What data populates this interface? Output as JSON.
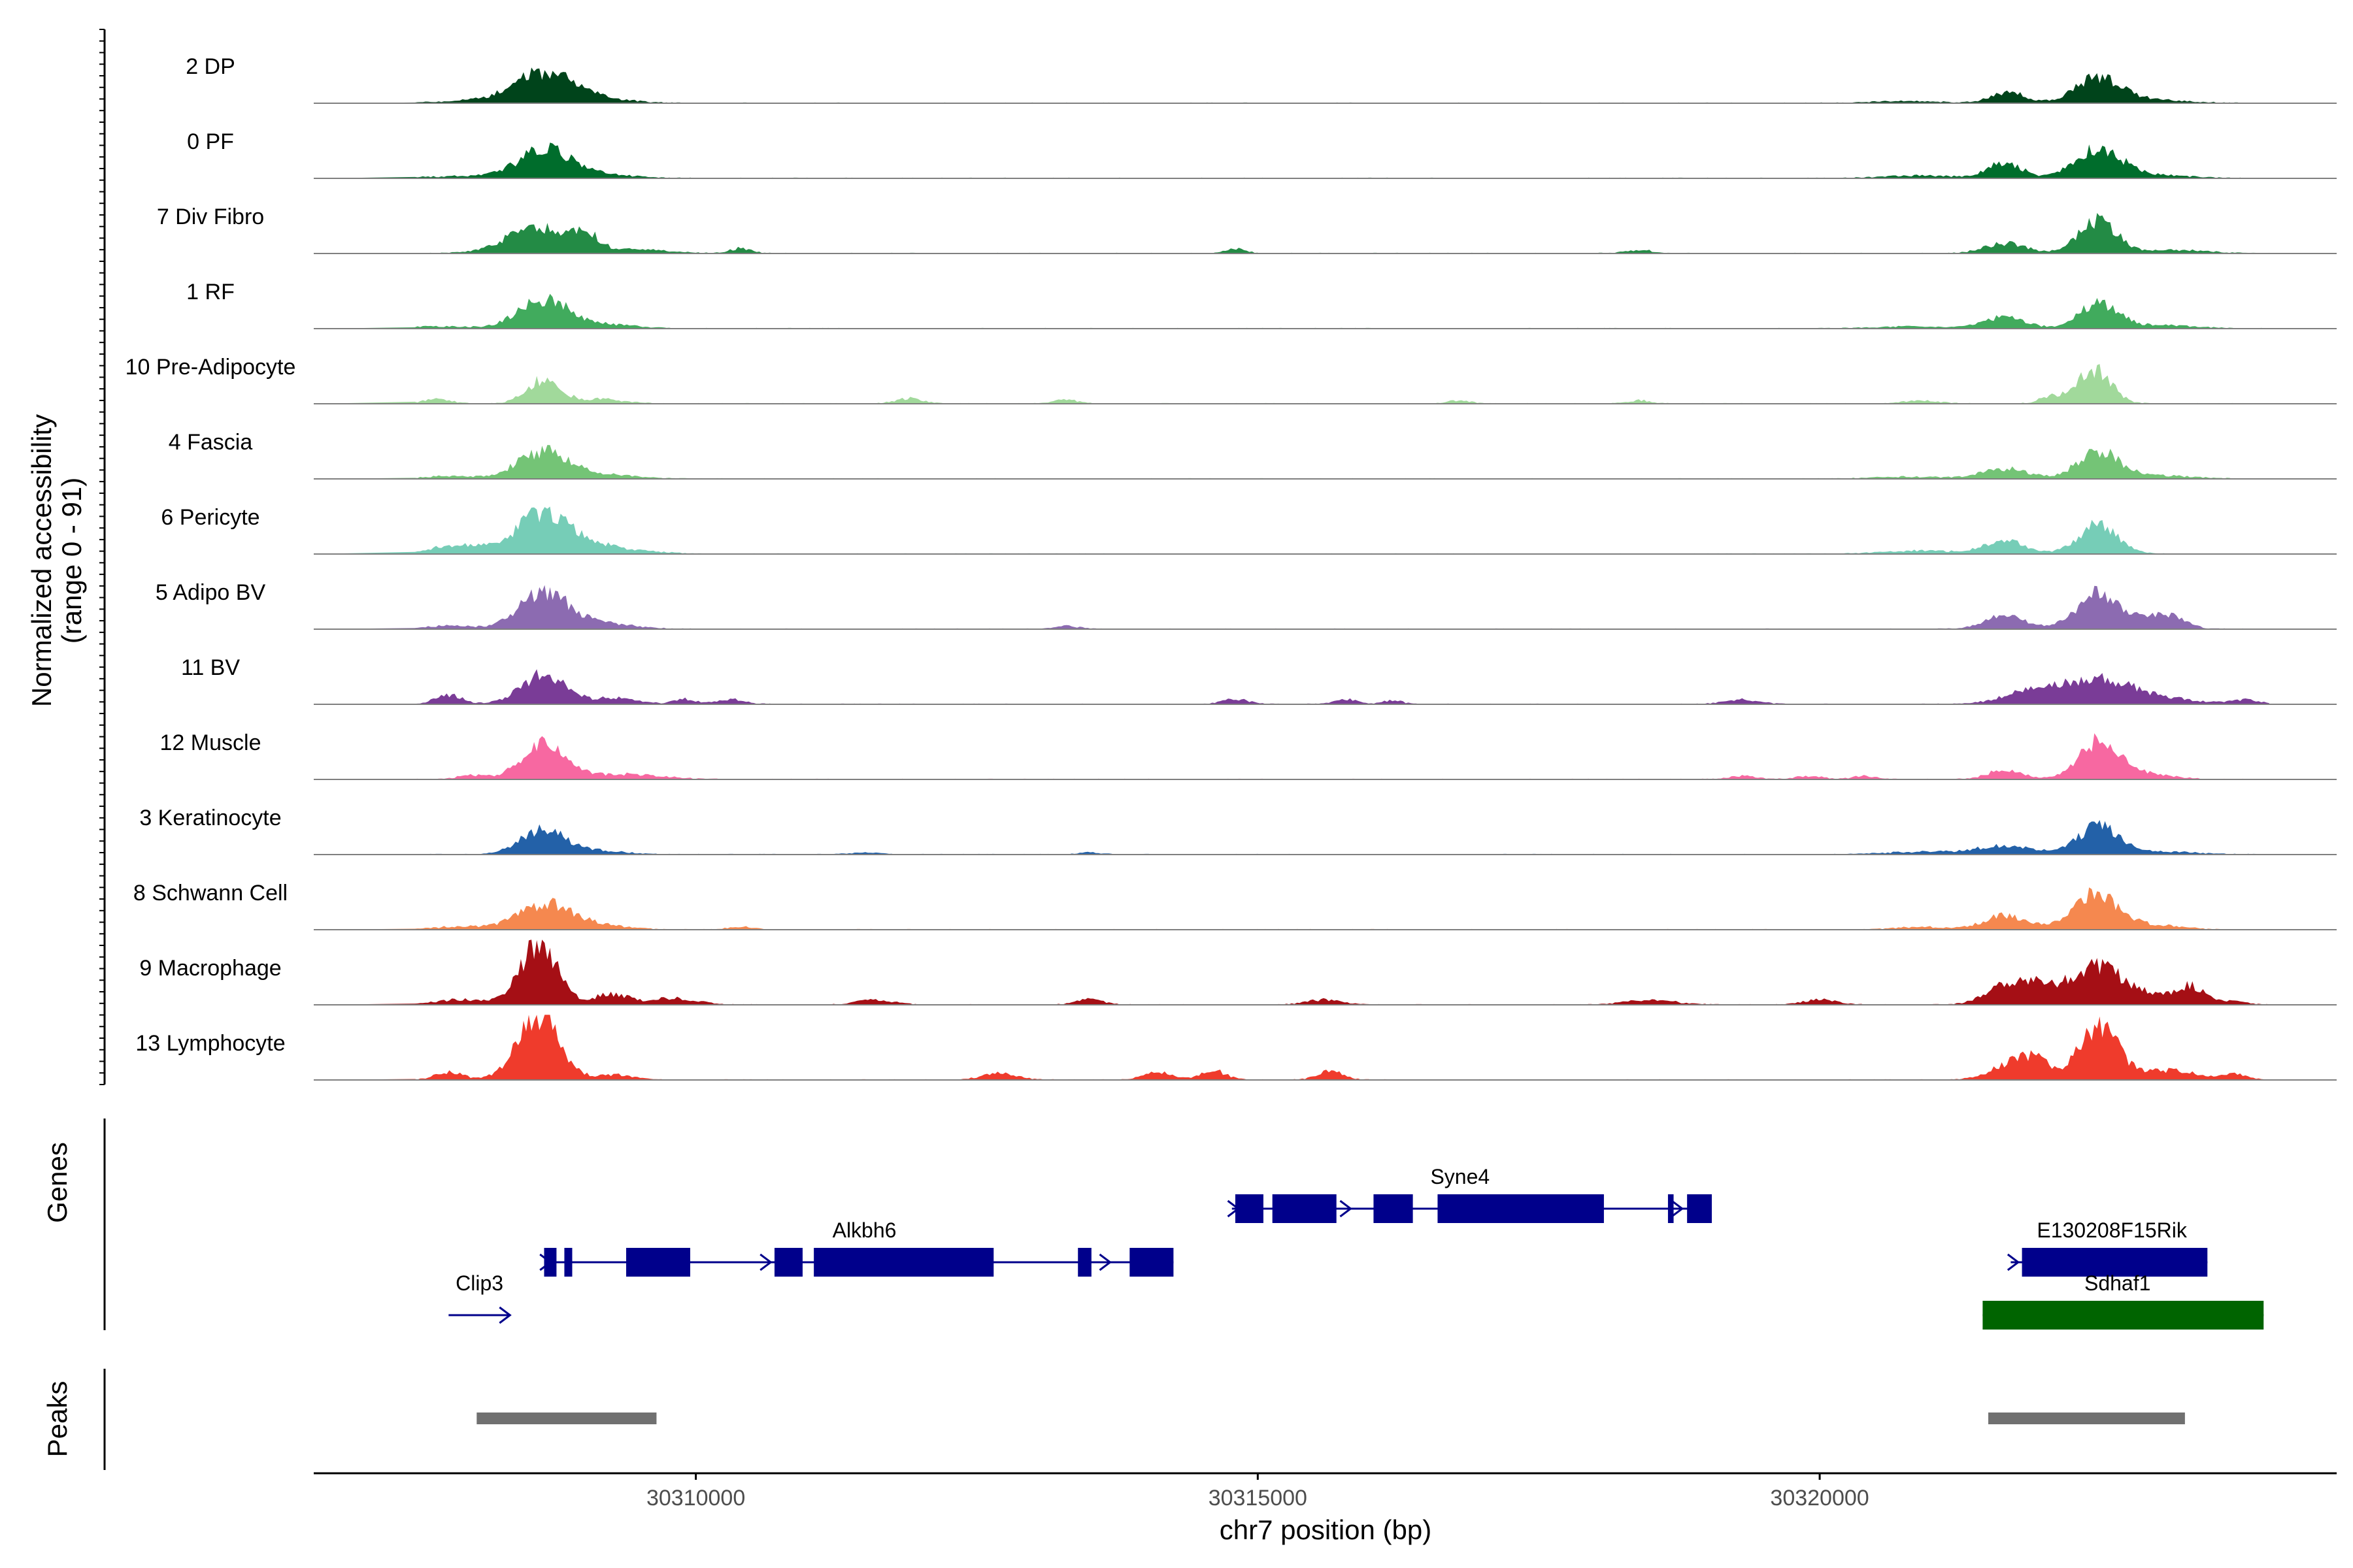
{
  "colors": {
    "baseline": "#7f7f7f",
    "axis": "#000000",
    "gene": "#00008b",
    "gene_highlight": "#006400",
    "peak": "#707070"
  },
  "chart_data": {
    "type": "area",
    "title": "",
    "ylabel_lines": [
      "Normalized accessibility",
      "(range 0 - 91)"
    ],
    "xlabel": "chr7 position (bp)",
    "xlim": [
      30306600,
      30324600
    ],
    "xticks": [
      30310000,
      30315000,
      30320000
    ],
    "ylim": [
      0,
      91
    ],
    "grid": false,
    "legend": "none",
    "tracks": [
      {
        "name": "2 DP",
        "color": "#00441b",
        "peaks": [
          [
            30308650,
            0.48,
            270
          ],
          [
            30322480,
            0.4,
            200
          ],
          [
            30321680,
            0.17,
            150
          ],
          [
            30309200,
            0.05,
            250
          ],
          [
            30322950,
            0.05,
            300
          ]
        ],
        "extras": [
          [
            30308000,
            0.03,
            350
          ],
          [
            30320800,
            0.03,
            300
          ]
        ]
      },
      {
        "name": "0 PF",
        "color": "#006d2c",
        "peaks": [
          [
            30308650,
            0.45,
            230
          ],
          [
            30322480,
            0.47,
            200
          ],
          [
            30321650,
            0.25,
            150
          ],
          [
            30309100,
            0.06,
            300
          ],
          [
            30322950,
            0.05,
            300
          ]
        ],
        "extras": [
          [
            30307900,
            0.03,
            300
          ],
          [
            30320900,
            0.04,
            300
          ]
        ]
      },
      {
        "name": "7 Div Fibro",
        "color": "#238b45",
        "peaks": [
          [
            30308580,
            0.4,
            270
          ],
          [
            30309000,
            0.27,
            130
          ],
          [
            30322480,
            0.52,
            170
          ],
          [
            30321650,
            0.16,
            180
          ],
          [
            30309500,
            0.06,
            250
          ]
        ],
        "extras": [
          [
            30310400,
            0.08,
            90
          ],
          [
            30314800,
            0.07,
            90
          ],
          [
            30318400,
            0.05,
            120
          ],
          [
            30323200,
            0.05,
            250
          ]
        ]
      },
      {
        "name": "1 RF",
        "color": "#41ab5d",
        "peaks": [
          [
            30308650,
            0.47,
            220
          ],
          [
            30322480,
            0.4,
            170
          ],
          [
            30321650,
            0.18,
            180
          ],
          [
            30309200,
            0.06,
            250
          ],
          [
            30323000,
            0.05,
            300
          ]
        ],
        "extras": [
          [
            30307700,
            0.03,
            300
          ],
          [
            30320800,
            0.03,
            300
          ]
        ]
      },
      {
        "name": "10 Pre-Adipocyte",
        "color": "#a1d99b",
        "peaks": [
          [
            30308640,
            0.38,
            150
          ],
          [
            30322440,
            0.55,
            150
          ],
          [
            30322050,
            0.1,
            100
          ],
          [
            30309150,
            0.07,
            200
          ]
        ],
        "extras": [
          [
            30307700,
            0.07,
            120
          ],
          [
            30311900,
            0.08,
            120
          ],
          [
            30313300,
            0.06,
            100
          ],
          [
            30316800,
            0.05,
            100
          ],
          [
            30318400,
            0.05,
            100
          ],
          [
            30320900,
            0.05,
            150
          ]
        ]
      },
      {
        "name": "4 Fascia",
        "color": "#74c476",
        "peaks": [
          [
            30308650,
            0.44,
            230
          ],
          [
            30322480,
            0.44,
            180
          ],
          [
            30321650,
            0.16,
            200
          ],
          [
            30309200,
            0.06,
            250
          ],
          [
            30323000,
            0.05,
            300
          ]
        ],
        "extras": [
          [
            30307800,
            0.04,
            200
          ],
          [
            30320800,
            0.03,
            300
          ]
        ]
      },
      {
        "name": "6 Pericyte",
        "color": "#76cdb7",
        "peaks": [
          [
            30308650,
            0.63,
            230
          ],
          [
            30322480,
            0.48,
            170
          ],
          [
            30321650,
            0.2,
            190
          ],
          [
            30309100,
            0.12,
            350
          ],
          [
            30307900,
            0.14,
            250
          ]
        ],
        "extras": [
          [
            30320900,
            0.05,
            300
          ]
        ]
      },
      {
        "name": "5 Adipo BV",
        "color": "#8c6bb1",
        "peaks": [
          [
            30308650,
            0.58,
            220
          ],
          [
            30322480,
            0.56,
            190
          ],
          [
            30321650,
            0.22,
            180
          ],
          [
            30323100,
            0.2,
            150
          ],
          [
            30309200,
            0.08,
            250
          ]
        ],
        "extras": [
          [
            30307800,
            0.05,
            200
          ],
          [
            30313300,
            0.05,
            100
          ],
          [
            30322900,
            0.1,
            120
          ]
        ]
      },
      {
        "name": "11 BV",
        "color": "#7a3c97",
        "peaks": [
          [
            30308650,
            0.47,
            200
          ],
          [
            30322480,
            0.36,
            300
          ],
          [
            30321900,
            0.2,
            250
          ],
          [
            30309300,
            0.1,
            180
          ],
          [
            30307800,
            0.14,
            120
          ]
        ],
        "extras": [
          [
            30309900,
            0.08,
            100
          ],
          [
            30310300,
            0.08,
            120
          ],
          [
            30314800,
            0.08,
            120
          ],
          [
            30315800,
            0.07,
            100
          ],
          [
            30316200,
            0.06,
            80
          ],
          [
            30319300,
            0.07,
            150
          ],
          [
            30323000,
            0.08,
            350
          ],
          [
            30323800,
            0.06,
            120
          ]
        ]
      },
      {
        "name": "12 Muscle",
        "color": "#f768a1",
        "peaks": [
          [
            30308650,
            0.55,
            200
          ],
          [
            30322480,
            0.6,
            180
          ],
          [
            30321650,
            0.15,
            150
          ],
          [
            30309400,
            0.08,
            300
          ],
          [
            30322950,
            0.08,
            200
          ]
        ],
        "extras": [
          [
            30308000,
            0.06,
            120
          ],
          [
            30319300,
            0.05,
            120
          ],
          [
            30319900,
            0.05,
            120
          ],
          [
            30320400,
            0.05,
            100
          ]
        ]
      },
      {
        "name": "3 Keratinocyte",
        "color": "#2361a8",
        "peaks": [
          [
            30308650,
            0.4,
            200
          ],
          [
            30322480,
            0.45,
            180
          ],
          [
            30321650,
            0.14,
            250
          ],
          [
            30309200,
            0.05,
            200
          ],
          [
            30323000,
            0.05,
            300
          ]
        ],
        "extras": [
          [
            30311500,
            0.03,
            120
          ],
          [
            30313500,
            0.03,
            100
          ],
          [
            30320900,
            0.04,
            300
          ]
        ]
      },
      {
        "name": "8 Schwann Cell",
        "color": "#f5884f",
        "peaks": [
          [
            30308650,
            0.4,
            230
          ],
          [
            30322450,
            0.55,
            200
          ],
          [
            30321650,
            0.22,
            190
          ],
          [
            30309100,
            0.07,
            250
          ],
          [
            30322950,
            0.07,
            250
          ]
        ],
        "extras": [
          [
            30307900,
            0.05,
            200
          ],
          [
            30310400,
            0.05,
            100
          ],
          [
            30320900,
            0.04,
            200
          ]
        ]
      },
      {
        "name": "9 Macrophage",
        "color": "#a50f15",
        "peaks": [
          [
            30308600,
            0.95,
            170
          ],
          [
            30322480,
            0.58,
            220
          ],
          [
            30321700,
            0.3,
            200
          ],
          [
            30309250,
            0.17,
            150
          ],
          [
            30323300,
            0.3,
            130
          ]
        ],
        "extras": [
          [
            30307900,
            0.08,
            200
          ],
          [
            30309800,
            0.1,
            200
          ],
          [
            30311600,
            0.08,
            150
          ],
          [
            30313500,
            0.08,
            120
          ],
          [
            30315600,
            0.08,
            150
          ],
          [
            30318500,
            0.08,
            200
          ],
          [
            30320000,
            0.08,
            150
          ],
          [
            30322000,
            0.2,
            200
          ],
          [
            30322900,
            0.12,
            200
          ],
          [
            30323700,
            0.07,
            100
          ]
        ]
      },
      {
        "name": "13 Lymphocyte",
        "color": "#ef3b2c",
        "peaks": [
          [
            30308600,
            1.0,
            190
          ],
          [
            30322480,
            0.88,
            170
          ],
          [
            30321750,
            0.28,
            200
          ],
          [
            30309300,
            0.08,
            150
          ],
          [
            30323100,
            0.15,
            250
          ]
        ],
        "extras": [
          [
            30307800,
            0.12,
            120
          ],
          [
            30312700,
            0.1,
            150
          ],
          [
            30314100,
            0.12,
            120
          ],
          [
            30314600,
            0.15,
            110
          ],
          [
            30315650,
            0.14,
            110
          ],
          [
            30321950,
            0.18,
            120
          ],
          [
            30323700,
            0.08,
            100
          ]
        ]
      }
    ],
    "genes": [
      {
        "name": "Clip3",
        "row": 3,
        "start": 30307800,
        "end": 30308350,
        "exons": [],
        "arrows": [
          30308300
        ]
      },
      {
        "name": "Alkbh6",
        "row": 2,
        "start": 30308650,
        "end": 30314250,
        "exons": [
          [
            30308650,
            30308760
          ],
          [
            30308830,
            30308900
          ],
          [
            30309380,
            30309950
          ],
          [
            30310700,
            30310950
          ],
          [
            30311050,
            30312650
          ],
          [
            30313400,
            30313520
          ],
          [
            30313860,
            30314250
          ]
        ],
        "arrows": [
          30308660,
          30310620,
          30313640
        ],
        "label_x": 30311500
      },
      {
        "name": "Syne4",
        "row": 1,
        "start": 30314770,
        "end": 30319040,
        "exons": [
          [
            30314800,
            30315050
          ],
          [
            30315130,
            30315700
          ],
          [
            30316030,
            30316380
          ],
          [
            30316600,
            30318080
          ],
          [
            30318650,
            30318700
          ],
          [
            30318820,
            30319040
          ]
        ],
        "arrows": [
          30314780,
          30315780,
          30318730
        ],
        "label_x": 30316800
      },
      {
        "name": "E130208F15Rik",
        "row": 2,
        "start": 30321700,
        "end": 30323450,
        "exons": [
          [
            30321800,
            30323450
          ]
        ],
        "arrows": [
          30321720
        ],
        "label_x": 30322600
      },
      {
        "name": "Sdhaf1",
        "row": 3,
        "start": 30321450,
        "end": 30323950,
        "exons": [
          [
            30321450,
            30323950
          ]
        ],
        "arrows": [],
        "highlight": true,
        "label_x": 30322650
      }
    ],
    "peak_regions": [
      [
        30308050,
        30309650
      ],
      [
        30321500,
        30323250
      ]
    ]
  },
  "panel_labels": {
    "genes": "Genes",
    "peaks": "Peaks"
  }
}
